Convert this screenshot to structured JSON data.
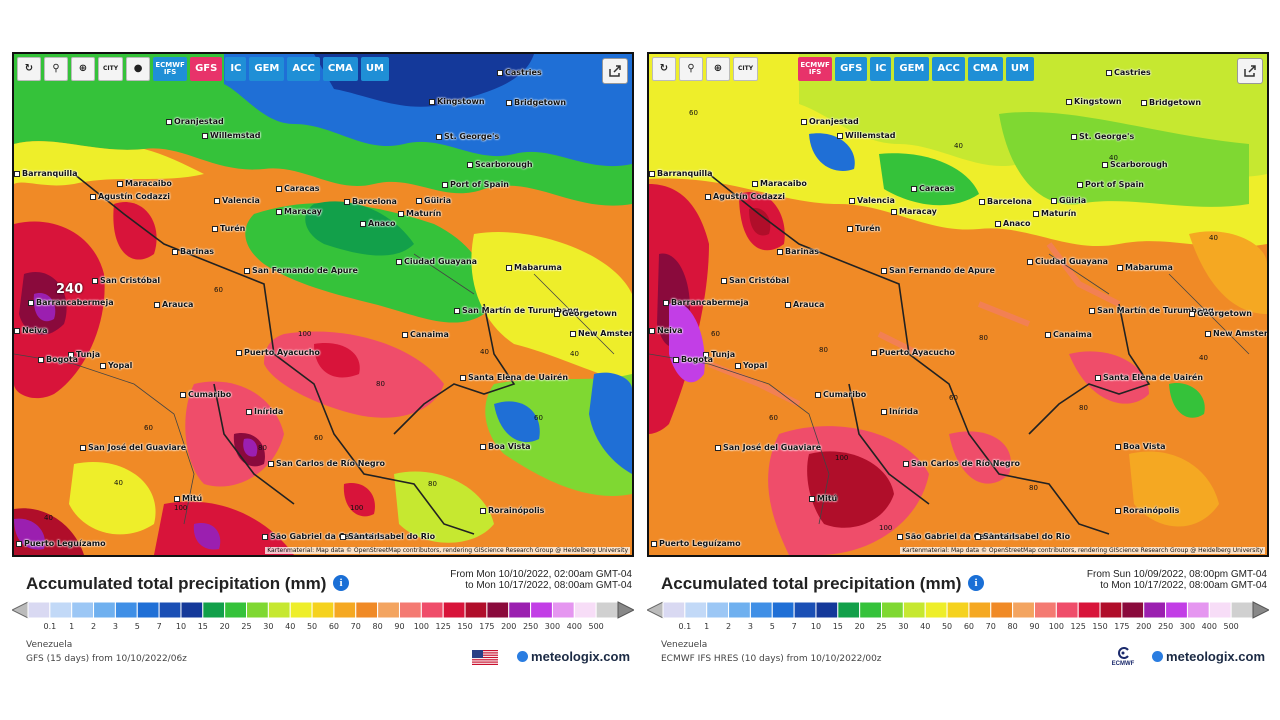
{
  "panels": [
    {
      "toolbar": {
        "tools": [
          "refresh-icon",
          "pin-icon",
          "zoom-icon",
          "city-toggle",
          "dot-toggle"
        ],
        "city_label": "CITY",
        "models": [
          "ECMWF IFS",
          "GFS",
          "IC",
          "GEM",
          "ACC",
          "CMA",
          "UM"
        ],
        "active_model": "GFS"
      },
      "cities": [
        "Castries",
        "Kingstown",
        "Bridgetown",
        "Oranjestad",
        "Willemstad",
        "St. George's",
        "Scarborough",
        "Port of Spain",
        "Maracaibo",
        "Caracas",
        "Barcelona",
        "Güiria",
        "Agustín Codazzi",
        "Valencia",
        "Maracay",
        "Anaco",
        "Maturín",
        "Turén",
        "Barinas",
        "Ciudad Guayana",
        "Mabaruma",
        "San Fernando de Apure",
        "San Cristóbal",
        "Barrancabermeja",
        "Arauca",
        "San Martín de Turumbang",
        "Georgetown",
        "New Amsterdam",
        "Canaima",
        "Puerto Ayacucho",
        "Tunja",
        "Yopal",
        "Bogota",
        "Cumaribo",
        "Santa Elena de Uairén",
        "Inírida",
        "Boa Vista",
        "San José del Guaviare",
        "San Carlos de Río Negro",
        "Mitú",
        "Rorainópolis",
        "São Gabriel da Cachoeira",
        "Santa Isabel do Rio",
        "Puerto Leguízamo",
        "Barranquilla",
        "Neiva"
      ],
      "contour_labels": [
        "240",
        "100",
        "80",
        "60",
        "40",
        "60",
        "40",
        "100",
        "80",
        "40",
        "60",
        "80",
        "100",
        "40",
        "60"
      ],
      "attribution": "Kartenmaterial: Map data © OpenStreetMap contributors, rendering GIScience Research Group @ Heidelberg University",
      "title": "Accumulated total precipitation (mm)",
      "date_from": "From Mon 10/10/2022, 02:00am GMT-04",
      "date_to": "to Mon 10/17/2022, 08:00am GMT-04",
      "legend_ticks": [
        "0.1",
        "1",
        "2",
        "3",
        "5",
        "7",
        "10",
        "15",
        "20",
        "25",
        "30",
        "40",
        "50",
        "60",
        "70",
        "80",
        "90",
        "100",
        "125",
        "150",
        "175",
        "200",
        "250",
        "300",
        "400",
        "500"
      ],
      "region": "Venezuela",
      "run": "GFS (15 days) from 10/10/2022/06z",
      "brand": "meteologix.com",
      "source_logo": "us-flag"
    },
    {
      "toolbar": {
        "tools": [
          "refresh-icon",
          "pin-icon",
          "zoom-icon",
          "city-toggle"
        ],
        "city_label": "CITY",
        "models": [
          "ECMWF IFS",
          "GFS",
          "IC",
          "GEM",
          "ACC",
          "CMA",
          "UM"
        ],
        "active_model": "ECMWF IFS"
      },
      "cities": [
        "Castries",
        "Kingstown",
        "Bridgetown",
        "Oranjestad",
        "Willemstad",
        "St. George's",
        "Scarborough",
        "Port of Spain",
        "Maracaibo",
        "Caracas",
        "Barcelona",
        "Güiria",
        "Agustín Codazzi",
        "Valencia",
        "Maracay",
        "Anaco",
        "Maturín",
        "Turén",
        "Barinas",
        "Ciudad Guayana",
        "Mabaruma",
        "San Fernando de Apure",
        "San Cristóbal",
        "Barrancabermeja",
        "Arauca",
        "San Martín de Turumbang",
        "Georgetown",
        "New Amsterdam",
        "Canaima",
        "Puerto Ayacucho",
        "Tunja",
        "Yopal",
        "Bogota",
        "Cumaribo",
        "Santa Elena de Uairén",
        "Inírida",
        "Boa Vista",
        "San José del Guaviare",
        "San Carlos de Río Negro",
        "Mitú",
        "Rorainópolis",
        "São Gabriel da Cachoeira",
        "Santa Isabel do Rio",
        "Puerto Leguízamo",
        "Barranquilla",
        "Neiva"
      ],
      "contour_labels": [
        "60",
        "40",
        "80",
        "60",
        "100",
        "80",
        "40",
        "60",
        "80",
        "100",
        "40",
        "60",
        "80",
        "100",
        "40"
      ],
      "attribution": "Kartenmaterial: Map data © OpenStreetMap contributors, rendering GIScience Research Group @ Heidelberg University",
      "title": "Accumulated total precipitation (mm)",
      "date_from": "From Sun 10/09/2022, 08:00pm GMT-04",
      "date_to": "to Mon 10/17/2022, 08:00am GMT-04",
      "legend_ticks": [
        "0.1",
        "1",
        "2",
        "3",
        "5",
        "7",
        "10",
        "15",
        "20",
        "25",
        "30",
        "40",
        "50",
        "60",
        "70",
        "80",
        "90",
        "100",
        "125",
        "150",
        "175",
        "200",
        "250",
        "300",
        "400",
        "500"
      ],
      "region": "Venezuela",
      "run": "ECMWF IFS HRES (10 days) from 10/10/2022/00z",
      "brand": "meteologix.com",
      "source_logo": "ECMWF"
    }
  ],
  "legend_colors": [
    "#d9d9f2",
    "#c2d9f7",
    "#9cc7f5",
    "#6fb0ef",
    "#3f8fe6",
    "#1f6fd6",
    "#1a4fb5",
    "#14399a",
    "#12a04a",
    "#35c23a",
    "#7fd832",
    "#c6e830",
    "#eeee2a",
    "#f5d21e",
    "#f5a822",
    "#f08a26",
    "#f3a460",
    "#f47a72",
    "#ef4d6a",
    "#d8143a",
    "#b00e2a",
    "#8a0a3c",
    "#9b1fb0",
    "#c23ee6",
    "#e596f0",
    "#f7ddf7",
    "#d0d0d0"
  ]
}
